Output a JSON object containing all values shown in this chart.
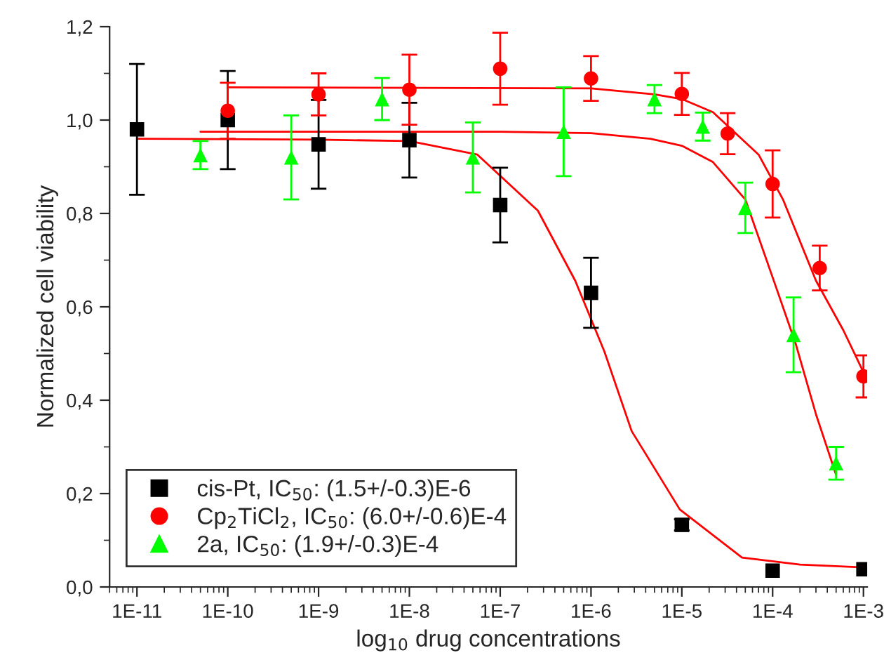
{
  "chart_data": {
    "type": "scatter",
    "xlabel": "log$_{10}$ drug concentrations",
    "ylabel": "Normalized cell viability",
    "log": "x",
    "xlim": [
      5e-12,
      0.0011
    ],
    "xticks": [
      {
        "value": 1e-11,
        "label": "1E-11"
      },
      {
        "value": 1e-10,
        "label": "1E-10"
      },
      {
        "value": 1e-09,
        "label": "1E-9"
      },
      {
        "value": 1e-08,
        "label": "1E-8"
      },
      {
        "value": 1e-07,
        "label": "1E-7"
      },
      {
        "value": 1e-06,
        "label": "1E-6"
      },
      {
        "value": 1e-05,
        "label": "1E-5"
      },
      {
        "value": 0.0001,
        "label": "1E-4"
      },
      {
        "value": 0.001,
        "label": "1E-3"
      }
    ],
    "ylim": [
      0,
      1.2
    ],
    "yticks": [
      {
        "value": 0,
        "label": "0,0"
      },
      {
        "value": 0.2,
        "label": "0,2"
      },
      {
        "value": 0.4,
        "label": "0,4"
      },
      {
        "value": 0.6,
        "label": "0,6"
      },
      {
        "value": 0.8,
        "label": "0,8"
      },
      {
        "value": 1.0,
        "label": "1,0"
      },
      {
        "value": 1.2,
        "label": "1,2"
      }
    ],
    "grid": false,
    "legend": "bottom left",
    "series": [
      {
        "name": "cis-Pt, IC$_{50}$: (1.5+/-0.3)E-6",
        "color": "#000000",
        "marker": "square",
        "x": [
          1e-11,
          1e-10,
          1e-09,
          1e-08,
          1e-07,
          1e-06,
          1e-05,
          0.0001,
          0.001
        ],
        "values": [
          0.98,
          1.0,
          0.948,
          0.957,
          0.818,
          0.63,
          0.133,
          0.035,
          0.038
        ],
        "errors": [
          0.14,
          0.105,
          0.095,
          0.08,
          0.08,
          0.075,
          0.012,
          null,
          null
        ]
      },
      {
        "name": "Cp$_{2}$TiCl$_{2}$, IC$_{50}$: (6.0+/-0.6)E-4",
        "color": "#ff0000",
        "marker": "circle",
        "x": [
          1e-10,
          1e-09,
          1e-08,
          1e-07,
          1e-06,
          1e-05,
          3.2e-05,
          0.0001,
          0.00033,
          0.001
        ],
        "values": [
          1.02,
          1.055,
          1.065,
          1.11,
          1.089,
          1.056,
          0.971,
          0.863,
          0.683,
          0.451
        ],
        "errors": [
          0.06,
          0.045,
          0.075,
          0.077,
          0.048,
          0.045,
          0.044,
          0.072,
          0.048,
          0.045
        ]
      },
      {
        "name": "2a, IC$_{50}$: (1.9+/-0.3)E-4",
        "color": "#00ff00",
        "marker": "triangle",
        "x": [
          5e-11,
          5e-10,
          5e-09,
          5e-08,
          5e-07,
          5e-06,
          1.7e-05,
          5e-05,
          0.00017,
          0.0005
        ],
        "values": [
          0.925,
          0.92,
          1.045,
          0.92,
          0.975,
          1.045,
          0.986,
          0.812,
          0.54,
          0.265
        ],
        "errors": [
          0.03,
          0.09,
          0.045,
          0.075,
          0.095,
          0.03,
          0.03,
          0.054,
          0.08,
          0.035
        ]
      },
      {
        "type": "line",
        "color": "#ff0000",
        "x": [
          1e-11,
          1e-09,
          1e-08,
          5.6e-08,
          2.6e-07,
          6.7e-07,
          1.4e-06,
          2.8e-06,
          9.5e-06,
          4.6e-05,
          0.0002,
          0.001
        ],
        "values": [
          0.96,
          0.958,
          0.955,
          0.926,
          0.806,
          0.656,
          0.505,
          0.334,
          0.166,
          0.063,
          0.048,
          0.042
        ]
      },
      {
        "type": "line",
        "color": "#ff0000",
        "x": [
          1e-10,
          1e-06,
          5e-06,
          1e-05,
          2.2e-05,
          7e-05,
          0.00013,
          0.0003,
          0.0006,
          0.001
        ],
        "values": [
          1.07,
          1.068,
          1.055,
          1.045,
          1.017,
          0.926,
          0.83,
          0.656,
          0.55,
          0.46
        ]
      },
      {
        "type": "line",
        "color": "#ff0000",
        "x": [
          5e-11,
          1e-07,
          1e-06,
          4.5e-06,
          1e-05,
          2.2e-05,
          5e-05,
          0.00011,
          0.00018,
          0.0003,
          0.0005
        ],
        "values": [
          0.975,
          0.975,
          0.972,
          0.96,
          0.945,
          0.91,
          0.83,
          0.64,
          0.52,
          0.37,
          0.24
        ]
      }
    ]
  }
}
